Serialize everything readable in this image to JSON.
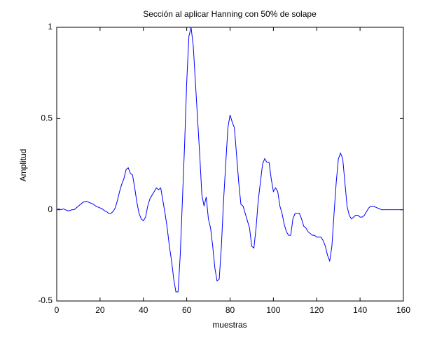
{
  "chart_data": {
    "type": "line",
    "title": "Sección al aplicar Hanning con 50% de solape",
    "xlabel": "muestras",
    "ylabel": "Amplitud",
    "x": [
      0,
      1,
      2,
      3,
      4,
      5,
      6,
      7,
      8,
      9,
      10,
      11,
      12,
      13,
      14,
      15,
      16,
      17,
      18,
      19,
      20,
      21,
      22,
      23,
      24,
      25,
      26,
      27,
      28,
      29,
      30,
      31,
      32,
      33,
      34,
      35,
      36,
      37,
      38,
      39,
      40,
      41,
      42,
      43,
      44,
      45,
      46,
      47,
      48,
      49,
      50,
      51,
      52,
      53,
      54,
      55,
      56,
      57,
      58,
      59,
      60,
      61,
      62,
      63,
      64,
      65,
      66,
      67,
      68,
      69,
      70,
      71,
      72,
      73,
      74,
      75,
      76,
      77,
      78,
      79,
      80,
      81,
      82,
      83,
      84,
      85,
      86,
      87,
      88,
      89,
      90,
      91,
      92,
      93,
      94,
      95,
      96,
      97,
      98,
      99,
      100,
      101,
      102,
      103,
      104,
      105,
      106,
      107,
      108,
      109,
      110,
      111,
      112,
      113,
      114,
      115,
      116,
      117,
      118,
      119,
      120,
      121,
      122,
      123,
      124,
      125,
      126,
      127,
      128,
      129,
      130,
      131,
      132,
      133,
      134,
      135,
      136,
      137,
      138,
      139,
      140,
      141,
      142,
      143,
      144,
      145,
      146,
      147,
      148,
      149,
      150,
      151,
      152,
      153,
      154,
      155,
      156,
      157,
      158,
      159,
      160
    ],
    "series": [
      {
        "color": "#0000ff",
        "values": [
          0,
          0.005,
          0,
          0.005,
          0,
          -0.005,
          -0.005,
          0,
          0,
          0.01,
          0.02,
          0.03,
          0.04,
          0.045,
          0.045,
          0.04,
          0.035,
          0.03,
          0.02,
          0.015,
          0.01,
          0.005,
          -0.005,
          -0.01,
          -0.02,
          -0.02,
          -0.01,
          0.01,
          0.05,
          0.1,
          0.14,
          0.17,
          0.22,
          0.23,
          0.2,
          0.19,
          0.12,
          0.04,
          -0.02,
          -0.05,
          -0.06,
          -0.04,
          0.02,
          0.06,
          0.08,
          0.1,
          0.12,
          0.11,
          0.12,
          0.05,
          -0.02,
          -0.1,
          -0.2,
          -0.28,
          -0.38,
          -0.45,
          -0.45,
          -0.25,
          0.05,
          0.35,
          0.7,
          0.95,
          1.0,
          0.9,
          0.7,
          0.5,
          0.3,
          0.08,
          0.02,
          0.07,
          -0.05,
          -0.1,
          -0.2,
          -0.32,
          -0.39,
          -0.38,
          -0.2,
          0.05,
          0.25,
          0.45,
          0.52,
          0.48,
          0.45,
          0.3,
          0.15,
          0.03,
          0.02,
          -0.02,
          -0.06,
          -0.1,
          -0.2,
          -0.21,
          -0.1,
          0.05,
          0.15,
          0.25,
          0.28,
          0.26,
          0.26,
          0.17,
          0.1,
          0.12,
          0.1,
          0.02,
          -0.02,
          -0.08,
          -0.12,
          -0.14,
          -0.14,
          -0.05,
          -0.02,
          -0.02,
          -0.02,
          -0.05,
          -0.09,
          -0.1,
          -0.12,
          -0.13,
          -0.14,
          -0.14,
          -0.15,
          -0.15,
          -0.15,
          -0.17,
          -0.2,
          -0.25,
          -0.28,
          -0.2,
          -0.02,
          0.15,
          0.28,
          0.31,
          0.28,
          0.15,
          0.02,
          -0.03,
          -0.05,
          -0.04,
          -0.03,
          -0.03,
          -0.04,
          -0.04,
          -0.03,
          -0.01,
          0.01,
          0.02,
          0.02,
          0.015,
          0.01,
          0.005,
          0,
          0,
          0,
          0,
          0,
          0,
          0,
          0,
          0,
          0,
          0
        ]
      }
    ],
    "xlim": [
      0,
      160
    ],
    "xticks": [
      0,
      20,
      40,
      60,
      80,
      100,
      120,
      140,
      160
    ],
    "ylim": [
      -0.5,
      1
    ],
    "yticks": [
      -0.5,
      0,
      0.5,
      1
    ],
    "grid": false
  }
}
